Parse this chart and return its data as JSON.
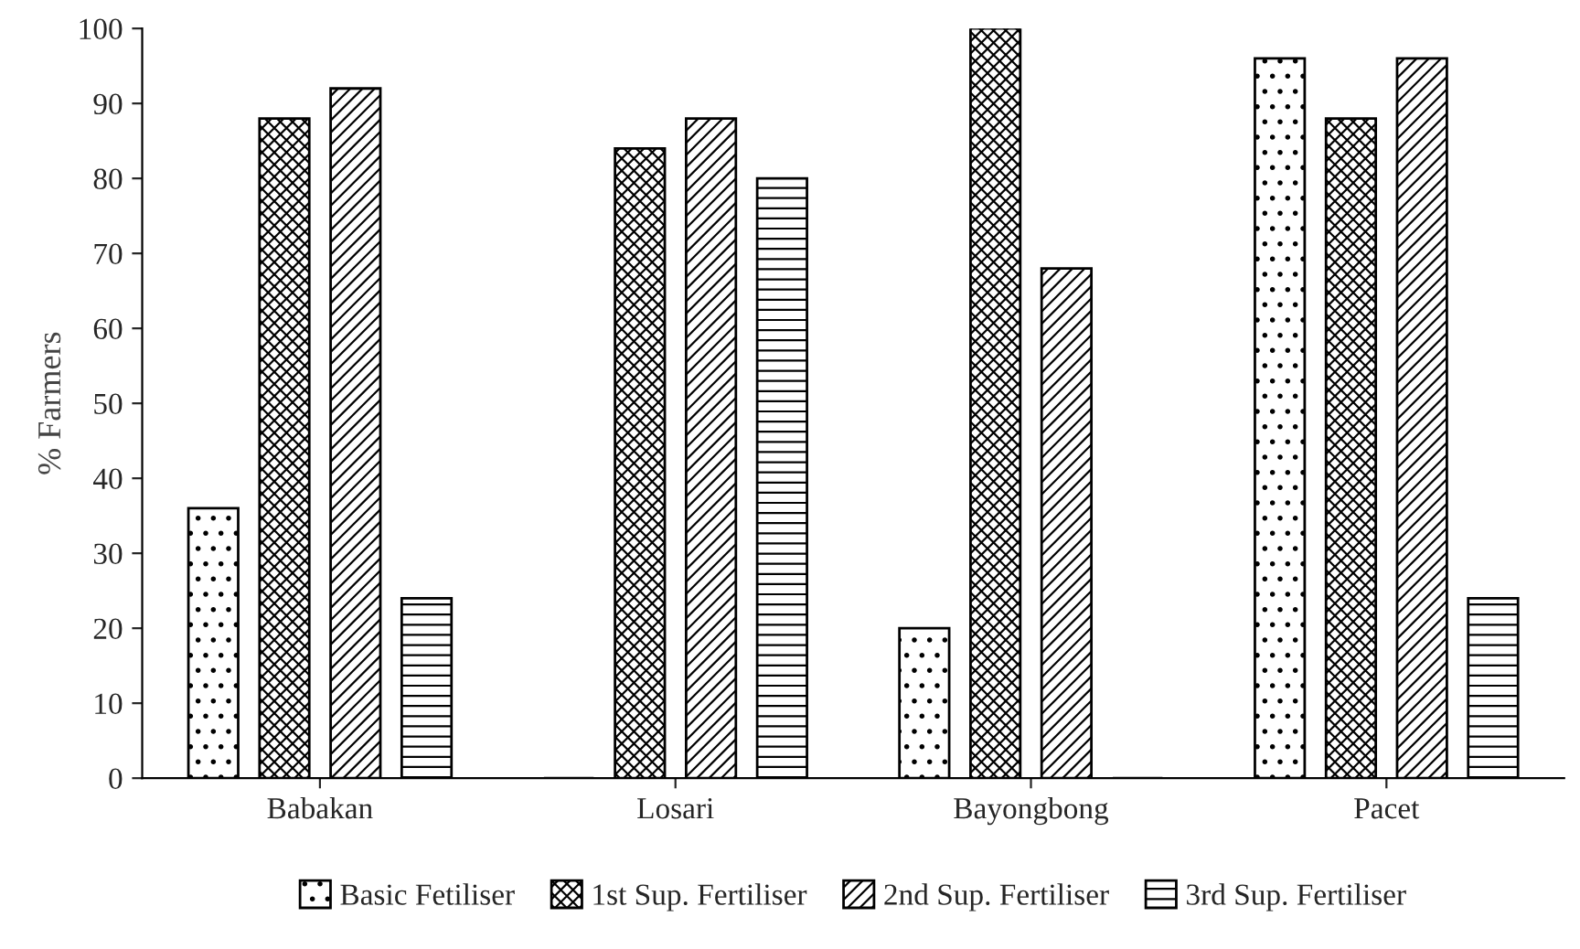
{
  "chart_data": {
    "type": "bar",
    "ylabel": "% Farmers",
    "categories": [
      "Babakan",
      "Losari",
      "Bayongbong",
      "Pacet"
    ],
    "series": [
      {
        "name": "Basic Fetiliser",
        "color": "#000000",
        "values": [
          36,
          0,
          20,
          96
        ]
      },
      {
        "name": "1st Sup. Fertiliser",
        "color": "#000000",
        "values": [
          88,
          84,
          100,
          88
        ]
      },
      {
        "name": "2nd Sup. Fertiliser",
        "color": "#000000",
        "values": [
          92,
          88,
          68,
          96
        ]
      },
      {
        "name": "3rd Sup. Fertiliser",
        "color": "#000000",
        "values": [
          24,
          80,
          0,
          24
        ]
      }
    ],
    "ylim": [
      0,
      100
    ],
    "yticks": [
      0,
      10,
      20,
      30,
      40,
      50,
      60,
      70,
      80,
      90,
      100
    ],
    "grid": false,
    "legend": "bottom"
  }
}
